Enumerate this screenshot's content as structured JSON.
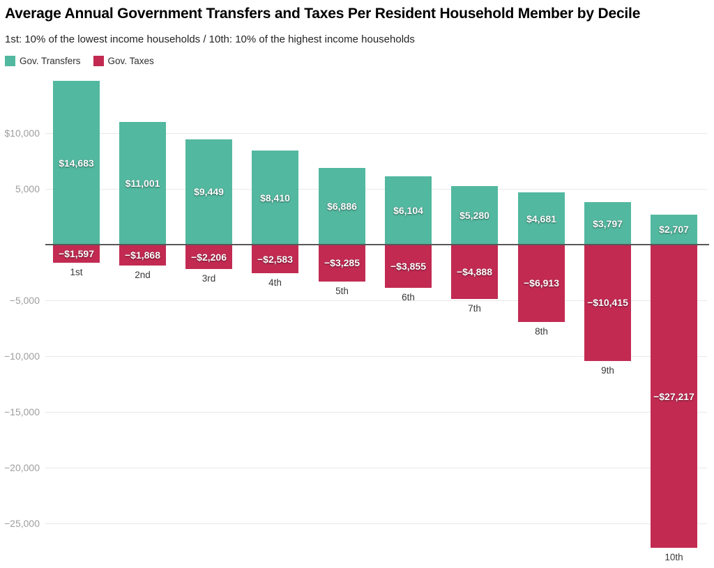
{
  "title": "Average Annual Government Transfers and Taxes Per Resident Household Member by Decile",
  "subtitle": "1st: 10% of the lowest income households / 10th: 10% of the highest income households",
  "legend": [
    {
      "label": "Gov. Transfers",
      "color": "#52b89f"
    },
    {
      "label": "Gov. Taxes",
      "color": "#c22a52"
    }
  ],
  "chart_data": {
    "type": "bar",
    "title": "Average Annual Government Transfers and Taxes Per Resident Household Member by Decile",
    "subtitle": "1st: 10% of the lowest income households / 10th: 10% of the highest income households",
    "xlabel": "",
    "ylabel": "",
    "categories": [
      "1st",
      "2nd",
      "3rd",
      "4th",
      "5th",
      "6th",
      "7th",
      "8th",
      "9th",
      "10th"
    ],
    "series": [
      {
        "name": "Gov. Transfers",
        "color": "#52b89f",
        "values": [
          14683,
          11001,
          9449,
          8410,
          6886,
          6104,
          5280,
          4681,
          3797,
          2707
        ],
        "labels": [
          "$14,683",
          "$11,001",
          "$9,449",
          "$8,410",
          "$6,886",
          "$6,104",
          "$5,280",
          "$4,681",
          "$3,797",
          "$2,707"
        ]
      },
      {
        "name": "Gov. Taxes",
        "color": "#c22a52",
        "values": [
          -1597,
          -1868,
          -2206,
          -2583,
          -3285,
          -3855,
          -4888,
          -6913,
          -10415,
          -27217
        ],
        "labels": [
          "−$1,597",
          "−$1,868",
          "−$2,206",
          "−$2,583",
          "−$3,285",
          "−$3,855",
          "−$4,888",
          "−$6,913",
          "−$10,415",
          "−$27,217"
        ]
      }
    ],
    "y_ticks": [
      {
        "value": 10000,
        "label": "$10,000"
      },
      {
        "value": 5000,
        "label": "5,000"
      },
      {
        "value": -5000,
        "label": "−5,000"
      },
      {
        "value": -10000,
        "label": "−10,000"
      },
      {
        "value": -15000,
        "label": "−15,000"
      },
      {
        "value": -20000,
        "label": "−20,000"
      },
      {
        "value": -25000,
        "label": "−25,000"
      }
    ],
    "ylim": [
      -27500,
      15000
    ],
    "grid": true,
    "zero_baseline": true,
    "legend_position": "top-left"
  }
}
